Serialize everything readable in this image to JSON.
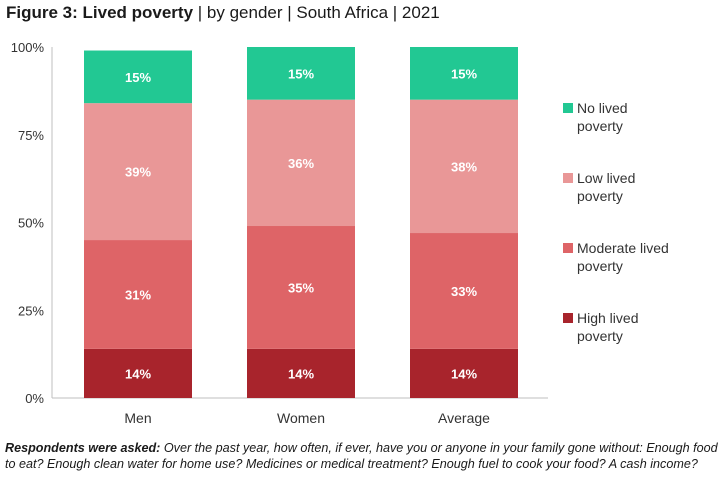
{
  "header": {
    "title_bold": "Figure 3: Lived poverty",
    "title_rest": " | by gender | South Africa | 2021"
  },
  "footnote": {
    "lead": "Respondents were asked:",
    "text": " Over the past year, how often, if ever, have you or anyone in your family gone without: Enough food to eat? Enough clean water for home use? Medicines or medical treatment? Enough fuel to cook your food? A cash income?"
  },
  "chart_data": {
    "type": "bar",
    "stacked": true,
    "categories": [
      "Men",
      "Women",
      "Average"
    ],
    "series": [
      {
        "name": "High lived poverty",
        "values": [
          14,
          14,
          14
        ],
        "labels": [
          "14%",
          "14%",
          "14%"
        ],
        "color": "#a8242c"
      },
      {
        "name": "Moderate lived poverty",
        "values": [
          31,
          35,
          33
        ],
        "labels": [
          "31%",
          "35%",
          "33%"
        ],
        "color": "#de6467"
      },
      {
        "name": "Low lived poverty",
        "values": [
          39,
          36,
          38
        ],
        "labels": [
          "39%",
          "36%",
          "38%"
        ],
        "color": "#e99797"
      },
      {
        "name": "No lived poverty",
        "values": [
          15,
          15,
          15
        ],
        "labels": [
          "15%",
          "15%",
          "15%"
        ],
        "color": "#22c893"
      }
    ],
    "legend": [
      {
        "line1": "No lived",
        "line2": "poverty",
        "color": "#22c893"
      },
      {
        "line1": "Low lived",
        "line2": "poverty",
        "color": "#e99797"
      },
      {
        "line1": "Moderate lived",
        "line2": "poverty",
        "color": "#de6467"
      },
      {
        "line1": "High lived",
        "line2": "poverty",
        "color": "#a8242c"
      }
    ],
    "yticks": [
      "0%",
      "25%",
      "50%",
      "75%",
      "100%"
    ],
    "ylim": [
      0,
      100
    ],
    "grid": false,
    "legend_position": "right"
  }
}
